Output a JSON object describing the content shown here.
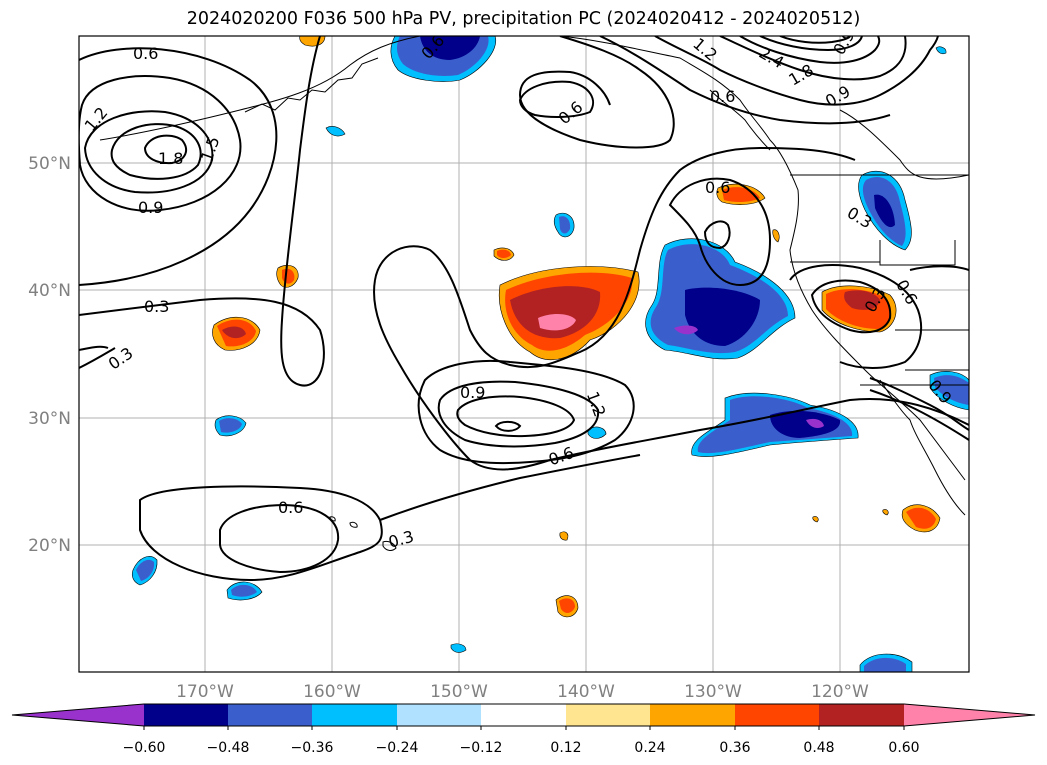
{
  "title": "2024020200 F036 500 hPa PV, precipitation PC (2024020412 - 2024020512)",
  "map": {
    "lat_labels": [
      "50°N",
      "40°N",
      "30°N",
      "20°N"
    ],
    "lon_labels": [
      "170°W",
      "160°W",
      "150°W",
      "140°W",
      "130°W",
      "120°W"
    ],
    "contour_labels": [
      "0.6",
      "1.2",
      "1.8",
      "1.5",
      "0.9",
      "0.3",
      "0.3",
      "0.6",
      "0.6",
      "0.9",
      "1.2",
      "0.6",
      "0.6",
      "0.3",
      "0.6",
      "0.3",
      "0.9",
      "0.6",
      "1.2",
      "2.4",
      "1.8",
      "0.9",
      "0.6",
      "0.3",
      "0.9",
      "0.6",
      "0.9"
    ]
  },
  "colorbar": {
    "ticks": [
      "−0.60",
      "−0.48",
      "−0.36",
      "−0.24",
      "−0.12",
      "0.12",
      "0.24",
      "0.36",
      "0.48",
      "0.60"
    ],
    "colors": [
      "#9932cc",
      "#00008b",
      "#3a5fcd",
      "#00bfff",
      "#b0e2ff",
      "#ffffff",
      "#ffe58f",
      "#ffa500",
      "#ff4500",
      "#b22222",
      "#ff82ab"
    ]
  }
}
